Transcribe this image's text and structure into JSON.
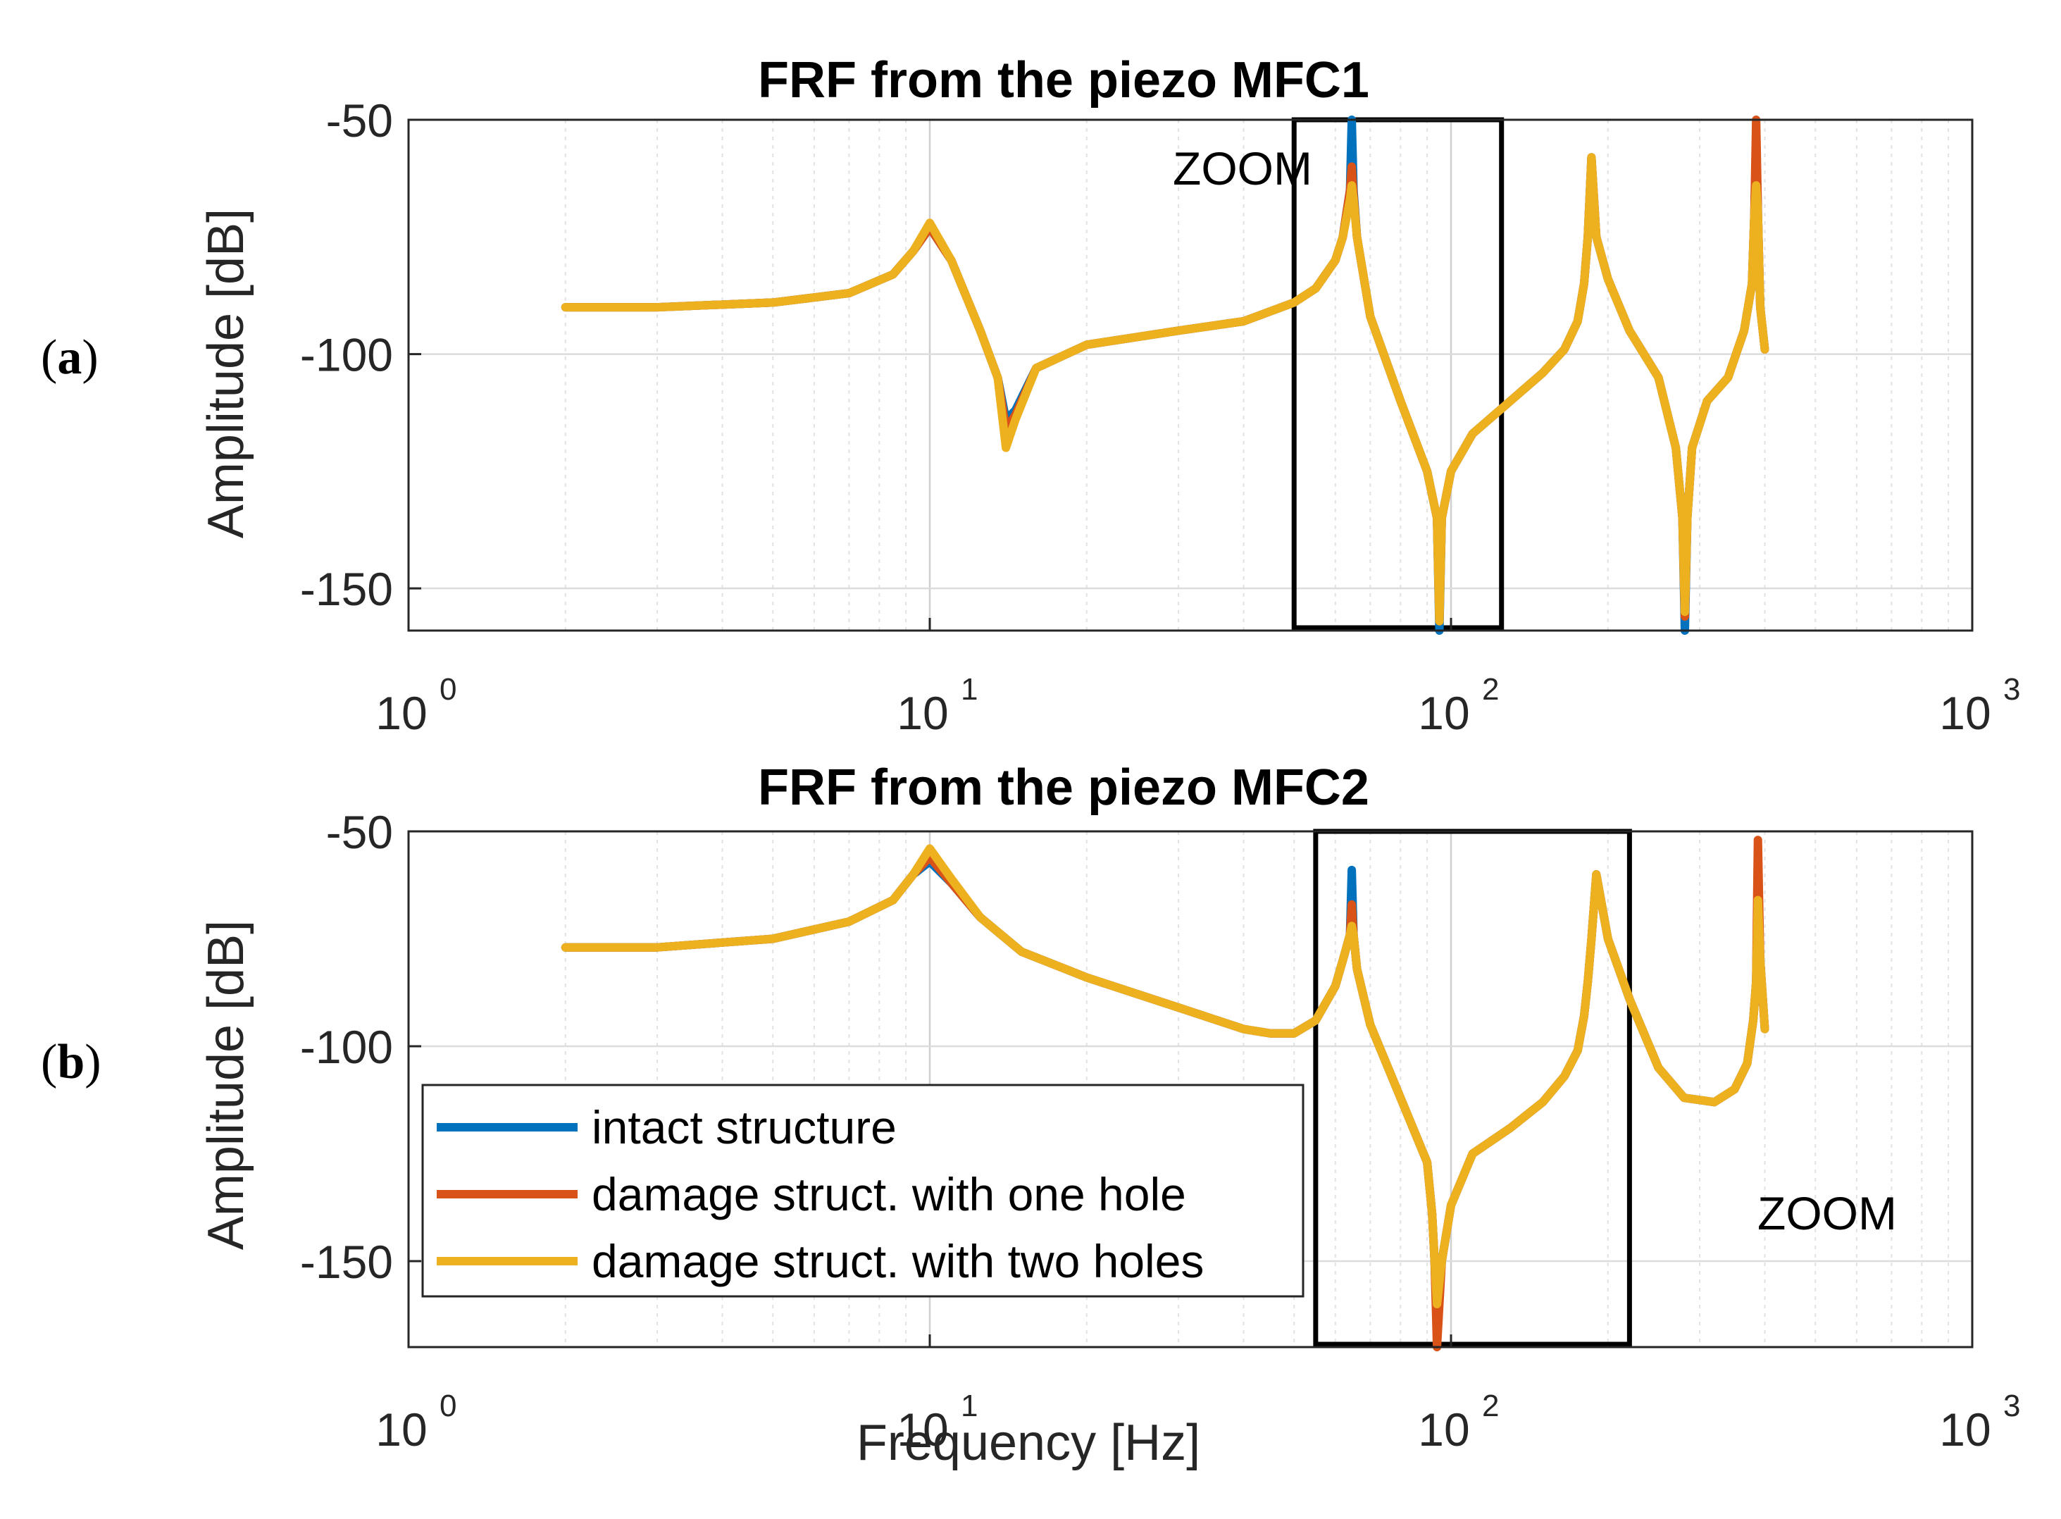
{
  "panels": [
    {
      "label_open": "(",
      "label_letter": "a",
      "label_close": ")"
    },
    {
      "label_open": "(",
      "label_letter": "b",
      "label_close": ")"
    }
  ],
  "legend": {
    "items": [
      {
        "label": "intact structure",
        "color": "#0072BD"
      },
      {
        "label": "damage struct. with one hole",
        "color": "#D95319"
      },
      {
        "label": "damage struct. with two holes",
        "color": "#EDB120"
      }
    ]
  },
  "chart_data": [
    {
      "type": "line",
      "title": "FRF from the piezo MFC1",
      "xlabel": "",
      "ylabel": "Amplitude [dB]",
      "xscale": "log",
      "xlim": [
        1,
        1000
      ],
      "ylim": [
        -159,
        -50
      ],
      "yticks": [
        -50,
        -100,
        -150
      ],
      "ytick_labels": [
        "-50",
        "-100",
        "-150"
      ],
      "xticks": [
        1,
        10,
        100,
        1000
      ],
      "xtick_labels": [
        {
          "base": "10",
          "exp": "0"
        },
        {
          "base": "10",
          "exp": "1"
        },
        {
          "base": "10",
          "exp": "2"
        },
        {
          "base": "10",
          "exp": "3"
        }
      ],
      "grid": true,
      "zoom_box": {
        "x_range": [
          50,
          125
        ],
        "label": "ZOOM"
      },
      "series": [
        {
          "name": "intact structure",
          "color": "#0072BD",
          "x": [
            2,
            3,
            5,
            7,
            8.5,
            9.3,
            10,
            11,
            12.5,
            13.5,
            14,
            14.6,
            16,
            20,
            30,
            40,
            50,
            55,
            60,
            62,
            64,
            64.5,
            65,
            66,
            70,
            80,
            90,
            94,
            95,
            96,
            100,
            110,
            130,
            150,
            165,
            175,
            180,
            183,
            186,
            190,
            200,
            220,
            250,
            270,
            278,
            281,
            284,
            290,
            310,
            340,
            365,
            378,
            382,
            385,
            388,
            392,
            400
          ],
          "y": [
            -90,
            -90,
            -89,
            -87,
            -83,
            -78,
            -73,
            -80,
            -95,
            -105,
            -114,
            -112,
            -103,
            -98,
            -95,
            -93,
            -89,
            -86,
            -80,
            -75,
            -65,
            -50,
            -65,
            -75,
            -92,
            -110,
            -125,
            -135,
            -159,
            -135,
            -125,
            -117,
            -110,
            -104,
            -99,
            -93,
            -85,
            -75,
            -58,
            -75,
            -84,
            -95,
            -105,
            -120,
            -135,
            -159,
            -135,
            -120,
            -110,
            -105,
            -95,
            -85,
            -70,
            -55,
            -70,
            -90,
            -99
          ]
        },
        {
          "name": "damage struct. with one hole",
          "color": "#D95319",
          "x": [
            2,
            3,
            5,
            7,
            8.5,
            9.3,
            10,
            11,
            12.5,
            13.5,
            14,
            14.6,
            16,
            20,
            30,
            40,
            50,
            55,
            60,
            62,
            64,
            64.5,
            65,
            66,
            70,
            80,
            90,
            94,
            95,
            96,
            100,
            110,
            130,
            150,
            165,
            175,
            180,
            183,
            186,
            190,
            200,
            220,
            250,
            270,
            278,
            281,
            284,
            290,
            310,
            340,
            365,
            378,
            382,
            385,
            388,
            392,
            400
          ],
          "y": [
            -90,
            -90,
            -89,
            -87,
            -83,
            -78,
            -73,
            -80,
            -95,
            -105,
            -116,
            -113,
            -103,
            -98,
            -95,
            -93,
            -89,
            -86,
            -80,
            -75,
            -65,
            -60,
            -66,
            -75,
            -92,
            -110,
            -125,
            -135,
            -157,
            -135,
            -125,
            -117,
            -110,
            -104,
            -99,
            -93,
            -85,
            -75,
            -58,
            -75,
            -84,
            -95,
            -105,
            -120,
            -135,
            -156,
            -135,
            -120,
            -110,
            -105,
            -95,
            -85,
            -70,
            -49,
            -70,
            -90,
            -99
          ]
        },
        {
          "name": "damage struct. with two holes",
          "color": "#EDB120",
          "x": [
            2,
            3,
            5,
            7,
            8.5,
            9.3,
            10,
            11,
            12.5,
            13.5,
            14,
            14.6,
            16,
            20,
            30,
            40,
            50,
            55,
            60,
            62,
            64,
            64.5,
            65,
            66,
            70,
            80,
            90,
            94,
            95,
            96,
            100,
            110,
            130,
            150,
            165,
            175,
            180,
            183,
            186,
            190,
            200,
            220,
            250,
            270,
            278,
            281,
            284,
            290,
            310,
            340,
            365,
            378,
            382,
            385,
            388,
            392,
            400
          ],
          "y": [
            -90,
            -90,
            -89,
            -87,
            -83,
            -78,
            -72,
            -80,
            -95,
            -105,
            -120,
            -114,
            -103,
            -98,
            -95,
            -93,
            -89,
            -86,
            -80,
            -75,
            -67,
            -64,
            -67,
            -75,
            -92,
            -110,
            -125,
            -135,
            -157,
            -135,
            -125,
            -117,
            -110,
            -104,
            -99,
            -93,
            -85,
            -75,
            -58,
            -75,
            -84,
            -95,
            -105,
            -120,
            -135,
            -155,
            -135,
            -120,
            -110,
            -105,
            -95,
            -85,
            -70,
            -64,
            -70,
            -90,
            -99
          ]
        }
      ]
    },
    {
      "type": "line",
      "title": "FRF from the piezo MFC2",
      "xlabel": "Frequency [Hz]",
      "ylabel": "Amplitude [dB]",
      "xscale": "log",
      "xlim": [
        1,
        1000
      ],
      "ylim": [
        -170,
        -50
      ],
      "yticks": [
        -50,
        -100,
        -150
      ],
      "ytick_labels": [
        "-50",
        "-100",
        "-150"
      ],
      "xticks": [
        1,
        10,
        100,
        1000
      ],
      "xtick_labels": [
        {
          "base": "10",
          "exp": "0"
        },
        {
          "base": "10",
          "exp": "1"
        },
        {
          "base": "10",
          "exp": "2"
        },
        {
          "base": "10",
          "exp": "3"
        }
      ],
      "grid": true,
      "legend_position": "bottom-left",
      "zoom_box": {
        "x_range": [
          55,
          220
        ],
        "label": "ZOOM"
      },
      "series": [
        {
          "name": "intact structure",
          "color": "#0072BD",
          "x": [
            2,
            3,
            5,
            7,
            8.5,
            9.3,
            10,
            11,
            12.5,
            15,
            20,
            30,
            40,
            45,
            50,
            55,
            60,
            62,
            64,
            64.5,
            65,
            66,
            70,
            80,
            90,
            92,
            93,
            94,
            96,
            100,
            110,
            130,
            150,
            165,
            175,
            180,
            183,
            186,
            190,
            200,
            220,
            250,
            280,
            320,
            350,
            370,
            380,
            385,
            388,
            392,
            400
          ],
          "y": [
            -77,
            -77,
            -75,
            -71,
            -66,
            -60,
            -57,
            -62,
            -70,
            -78,
            -84,
            -91,
            -96,
            -97,
            -97,
            -94,
            -86,
            -80,
            -74,
            -59,
            -74,
            -82,
            -95,
            -112,
            -127,
            -139,
            -150,
            -165,
            -150,
            -137,
            -125,
            -119,
            -113,
            -107,
            -101,
            -93,
            -85,
            -75,
            -60,
            -75,
            -89,
            -105,
            -112,
            -113,
            -110,
            -104,
            -94,
            -85,
            -65,
            -80,
            -96
          ]
        },
        {
          "name": "damage struct. with one hole",
          "color": "#D95319",
          "x": [
            2,
            3,
            5,
            7,
            8.5,
            9.3,
            10,
            11,
            12.5,
            15,
            20,
            30,
            40,
            45,
            50,
            55,
            60,
            62,
            64,
            64.5,
            65,
            66,
            70,
            80,
            90,
            92,
            93,
            94,
            96,
            100,
            110,
            130,
            150,
            165,
            175,
            180,
            183,
            186,
            190,
            200,
            220,
            250,
            280,
            320,
            350,
            370,
            380,
            385,
            388,
            392,
            400
          ],
          "y": [
            -77,
            -77,
            -75,
            -71,
            -66,
            -60,
            -56,
            -62,
            -70,
            -78,
            -84,
            -91,
            -96,
            -97,
            -97,
            -94,
            -86,
            -80,
            -74,
            -67,
            -74,
            -82,
            -95,
            -112,
            -127,
            -139,
            -150,
            -170,
            -150,
            -137,
            -125,
            -119,
            -113,
            -107,
            -101,
            -93,
            -85,
            -75,
            -60,
            -75,
            -89,
            -105,
            -112,
            -113,
            -110,
            -104,
            -94,
            -85,
            -52,
            -80,
            -96
          ]
        },
        {
          "name": "damage struct. with two holes",
          "color": "#EDB120",
          "x": [
            2,
            3,
            5,
            7,
            8.5,
            9.3,
            10,
            11,
            12.5,
            15,
            20,
            30,
            40,
            45,
            50,
            55,
            60,
            62,
            64,
            64.5,
            65,
            66,
            70,
            80,
            90,
            92,
            93,
            94,
            96,
            100,
            110,
            130,
            150,
            165,
            175,
            180,
            183,
            186,
            190,
            200,
            220,
            250,
            280,
            320,
            350,
            370,
            380,
            385,
            388,
            392,
            400
          ],
          "y": [
            -77,
            -77,
            -75,
            -71,
            -66,
            -60,
            -54,
            -61,
            -70,
            -78,
            -84,
            -91,
            -96,
            -97,
            -97,
            -94,
            -86,
            -80,
            -74,
            -72,
            -74,
            -82,
            -95,
            -112,
            -127,
            -139,
            -150,
            -160,
            -150,
            -137,
            -125,
            -119,
            -113,
            -107,
            -101,
            -93,
            -85,
            -75,
            -60,
            -75,
            -89,
            -105,
            -112,
            -113,
            -110,
            -104,
            -94,
            -85,
            -66,
            -80,
            -96
          ]
        }
      ]
    }
  ]
}
